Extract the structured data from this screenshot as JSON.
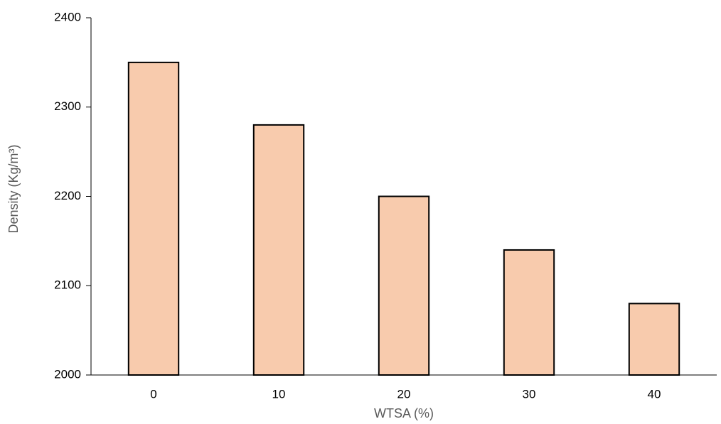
{
  "chart_data": {
    "type": "bar",
    "x_label": "WTSA (%)",
    "y_label": "Density (Kg/m³)",
    "categories": [
      "0",
      "10",
      "20",
      "30",
      "40"
    ],
    "values": [
      2350,
      2280,
      2200,
      2140,
      2080
    ],
    "color": "#f8cbad",
    "ylim": [
      2000,
      2400
    ],
    "yticks": [
      2000,
      2100,
      2200,
      2300,
      2400
    ]
  }
}
